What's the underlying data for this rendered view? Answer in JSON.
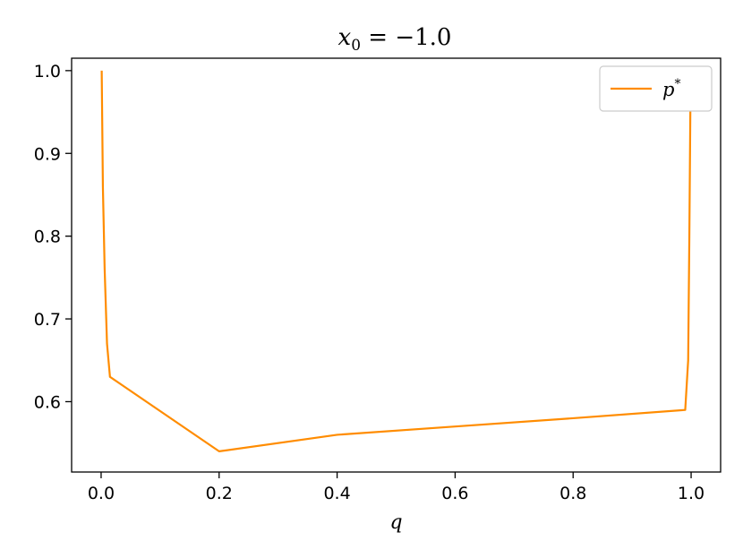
{
  "chart_data": {
    "type": "line",
    "title": "x₀ = −1.0",
    "xlabel": "q",
    "ylabel": "",
    "xlim": [
      -0.05,
      1.05
    ],
    "ylim": [
      0.515,
      1.015
    ],
    "xticks": [
      "0.0",
      "0.2",
      "0.4",
      "0.6",
      "0.8",
      "1.0"
    ],
    "yticks": [
      "0.6",
      "0.7",
      "0.8",
      "0.9",
      "1.0"
    ],
    "grid": false,
    "legend_position": "top-right",
    "series": [
      {
        "name": "p*",
        "color": "#ff8c00",
        "x": [
          0.001,
          0.003,
          0.006,
          0.01,
          0.015,
          0.2,
          0.4,
          0.6,
          0.8,
          0.99,
          0.995,
          0.997,
          0.999
        ],
        "y": [
          1.0,
          0.86,
          0.76,
          0.67,
          0.63,
          0.54,
          0.56,
          0.57,
          0.58,
          0.59,
          0.65,
          0.8,
          0.98
        ]
      }
    ]
  }
}
